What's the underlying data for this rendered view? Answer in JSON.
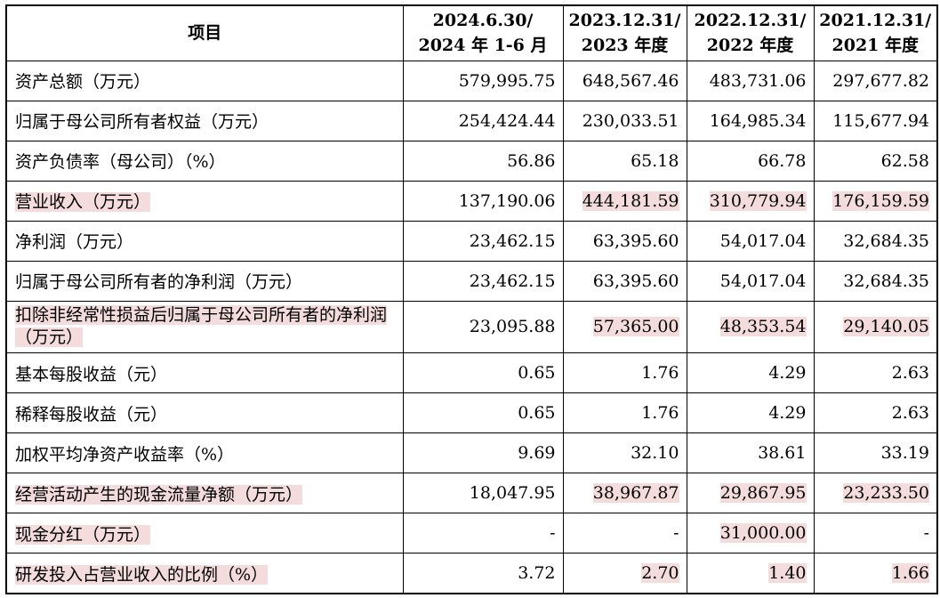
{
  "columns": [
    {
      "line1": "项目",
      "line2": ""
    },
    {
      "line1": "2024.6.30/",
      "line2": "2024 年 1-6 月"
    },
    {
      "line1": "2023.12.31/",
      "line2": "2023 年度"
    },
    {
      "line1": "2022.12.31/",
      "line2": "2022 年度"
    },
    {
      "line1": "2021.12.31/",
      "line2": "2021 年度"
    }
  ],
  "rows": [
    {
      "label": "资产总额（万元）",
      "values": [
        "579,995.75",
        "648,567.46",
        "483,731.06",
        "297,677.82"
      ]
    },
    {
      "label": "归属于母公司所有者权益（万元）",
      "values": [
        "254,424.44",
        "230,033.51",
        "164,985.34",
        "115,677.94"
      ]
    },
    {
      "label": "资产负债率（母公司）（%）",
      "values": [
        "56.86",
        "65.18",
        "66.78",
        "62.58"
      ]
    },
    {
      "label": "营业收入（万元）",
      "values": [
        "137,190.06",
        "444,181.59",
        "310,779.94",
        "176,159.59"
      ]
    },
    {
      "label": "净利润（万元）",
      "values": [
        "23,462.15",
        "63,395.60",
        "54,017.04",
        "32,684.35"
      ]
    },
    {
      "label": "归属于母公司所有者的净利润（万元）",
      "values": [
        "23,462.15",
        "63,395.60",
        "54,017.04",
        "32,684.35"
      ]
    },
    {
      "label": "扣除非经常性损益后归属于母公司所有者的净利润（万元）",
      "values": [
        "23,095.88",
        "57,365.00",
        "48,353.54",
        "29,140.05"
      ]
    },
    {
      "label": "基本每股收益（元）",
      "values": [
        "0.65",
        "1.76",
        "4.29",
        "2.63"
      ]
    },
    {
      "label": "稀释每股收益（元）",
      "values": [
        "0.65",
        "1.76",
        "4.29",
        "2.63"
      ]
    },
    {
      "label": "加权平均净资产收益率（%）",
      "values": [
        "9.69",
        "32.10",
        "38.61",
        "33.19"
      ]
    },
    {
      "label": "经营活动产生的现金流量净额（万元）",
      "values": [
        "18,047.95",
        "38,967.87",
        "29,867.95",
        "23,233.50"
      ]
    },
    {
      "label": "现金分红（万元）",
      "values": [
        "-",
        "-",
        "31,000.00",
        "-"
      ]
    },
    {
      "label": "研发投入占营业收入的比例（%）",
      "values": [
        "3.72",
        "2.70",
        "1.40",
        "1.66"
      ]
    }
  ],
  "highlight_color": "#f4dcdc"
}
